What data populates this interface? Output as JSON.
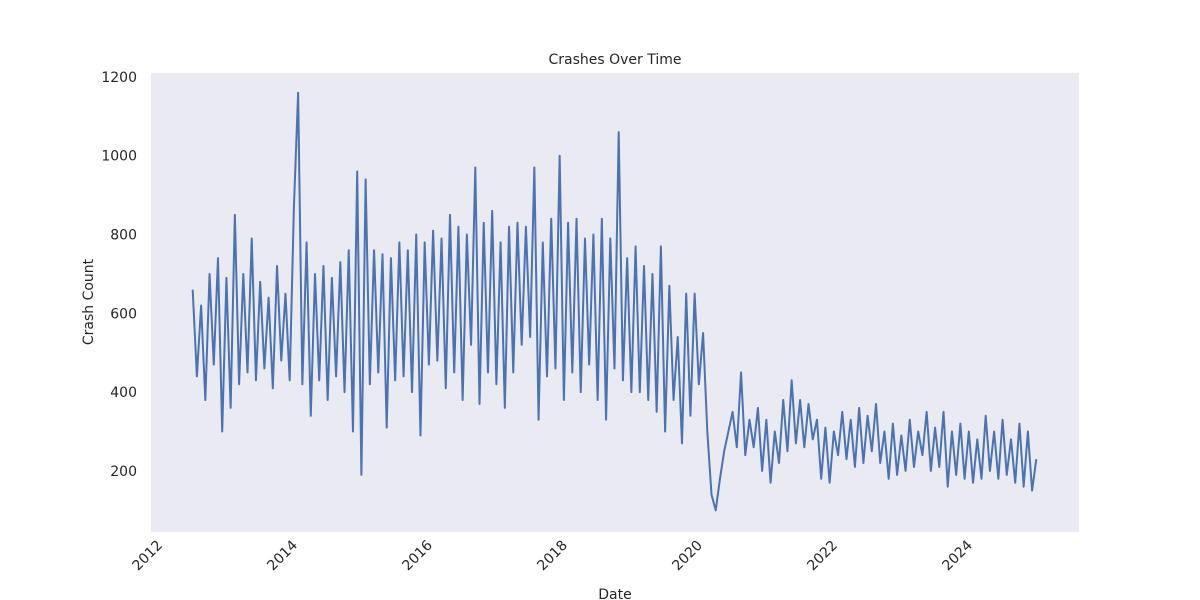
{
  "chart_data": {
    "type": "line",
    "title": "Crashes Over Time",
    "x_label": "Date",
    "y_label": "Crash Count",
    "x": [
      2012.4375,
      2012.5,
      2012.5625,
      2012.625,
      2012.6875,
      2012.75,
      2012.8125,
      2012.875,
      2012.9375,
      2013,
      2013.0625,
      2013.125,
      2013.1875,
      2013.25,
      2013.3125,
      2013.375,
      2013.4375,
      2013.5,
      2013.5625,
      2013.625,
      2013.6875,
      2013.75,
      2013.8125,
      2013.875,
      2013.9375,
      2014,
      2014.0625,
      2014.125,
      2014.1875,
      2014.25,
      2014.3125,
      2014.375,
      2014.4375,
      2014.5,
      2014.5625,
      2014.625,
      2014.6875,
      2014.75,
      2014.8125,
      2014.875,
      2014.9375,
      2015,
      2015.0625,
      2015.125,
      2015.1875,
      2015.25,
      2015.3125,
      2015.375,
      2015.4375,
      2015.5,
      2015.5625,
      2015.625,
      2015.6875,
      2015.75,
      2015.8125,
      2015.875,
      2015.9375,
      2016,
      2016.0625,
      2016.125,
      2016.1875,
      2016.25,
      2016.3125,
      2016.375,
      2016.4375,
      2016.5,
      2016.5625,
      2016.625,
      2016.6875,
      2016.75,
      2016.8125,
      2016.875,
      2016.9375,
      2017,
      2017.0625,
      2017.125,
      2017.1875,
      2017.25,
      2017.3125,
      2017.375,
      2017.4375,
      2017.5,
      2017.5625,
      2017.625,
      2017.6875,
      2017.75,
      2017.8125,
      2017.875,
      2017.9375,
      2018,
      2018.0625,
      2018.125,
      2018.1875,
      2018.25,
      2018.3125,
      2018.375,
      2018.4375,
      2018.5,
      2018.5625,
      2018.625,
      2018.6875,
      2018.75,
      2018.8125,
      2018.875,
      2018.9375,
      2019,
      2019.0625,
      2019.125,
      2019.1875,
      2019.25,
      2019.3125,
      2019.375,
      2019.4375,
      2019.5,
      2019.5625,
      2019.625,
      2019.6875,
      2019.75,
      2019.8125,
      2019.875,
      2019.9375,
      2020,
      2020.0625,
      2020.125,
      2020.1875,
      2020.25,
      2020.3125,
      2020.375,
      2020.4375,
      2020.5,
      2020.5625,
      2020.625,
      2020.6875,
      2020.75,
      2020.8125,
      2020.875,
      2020.9375,
      2021,
      2021.0625,
      2021.125,
      2021.1875,
      2021.25,
      2021.3125,
      2021.375,
      2021.4375,
      2021.5,
      2021.5625,
      2021.625,
      2021.6875,
      2021.75,
      2021.8125,
      2021.875,
      2021.9375,
      2022,
      2022.0625,
      2022.125,
      2022.1875,
      2022.25,
      2022.3125,
      2022.375,
      2022.4375,
      2022.5,
      2022.5625,
      2022.625,
      2022.6875,
      2022.75,
      2022.8125,
      2022.875,
      2022.9375,
      2023,
      2023.0625,
      2023.125,
      2023.1875,
      2023.25,
      2023.3125,
      2023.375,
      2023.4375,
      2023.5,
      2023.5625,
      2023.625,
      2023.6875,
      2023.75,
      2023.8125,
      2023.875,
      2023.9375,
      2024,
      2024.0625,
      2024.125,
      2024.1875,
      2024.25,
      2024.3125,
      2024.375,
      2024.4375,
      2024.5,
      2024.5625,
      2024.625,
      2024.6875,
      2024.75,
      2024.8125,
      2024.875,
      2024.9375
    ],
    "values": [
      660,
      440,
      620,
      380,
      700,
      470,
      740,
      300,
      690,
      360,
      850,
      420,
      700,
      450,
      790,
      430,
      680,
      460,
      640,
      410,
      720,
      480,
      650,
      430,
      870,
      1160,
      420,
      780,
      340,
      700,
      430,
      720,
      380,
      690,
      440,
      730,
      400,
      760,
      300,
      960,
      190,
      940,
      420,
      760,
      450,
      750,
      310,
      740,
      430,
      780,
      440,
      760,
      400,
      800,
      290,
      780,
      470,
      810,
      480,
      790,
      410,
      850,
      450,
      820,
      380,
      800,
      520,
      970,
      370,
      830,
      450,
      860,
      420,
      780,
      360,
      820,
      450,
      830,
      520,
      820,
      540,
      970,
      330,
      780,
      440,
      840,
      460,
      1000,
      380,
      830,
      450,
      840,
      400,
      790,
      470,
      800,
      380,
      840,
      330,
      790,
      460,
      1060,
      430,
      740,
      400,
      770,
      400,
      720,
      380,
      700,
      350,
      770,
      300,
      670,
      380,
      540,
      270,
      650,
      340,
      650,
      420,
      550,
      300,
      140,
      100,
      180,
      250,
      300,
      350,
      260,
      450,
      240,
      330,
      260,
      360,
      200,
      330,
      170,
      300,
      220,
      380,
      250,
      430,
      270,
      380,
      260,
      370,
      280,
      330,
      180,
      310,
      170,
      300,
      240,
      350,
      230,
      330,
      210,
      360,
      220,
      340,
      250,
      370,
      220,
      300,
      180,
      320,
      190,
      290,
      200,
      330,
      210,
      300,
      240,
      350,
      200,
      310,
      210,
      350,
      160,
      300,
      190,
      320,
      180,
      300,
      170,
      280,
      180,
      340,
      200,
      300,
      180,
      330,
      190,
      280,
      170,
      320,
      160,
      300,
      150,
      230
    ],
    "color": "#4c72b0",
    "xlim": [
      2011.82,
      2025.57
    ],
    "xticks": [
      2012,
      2014,
      2016,
      2018,
      2020,
      2022,
      2024
    ],
    "ylim": [
      45,
      1210
    ],
    "yticks": [
      200,
      400,
      600,
      800,
      1000,
      1200
    ],
    "grid": false
  }
}
